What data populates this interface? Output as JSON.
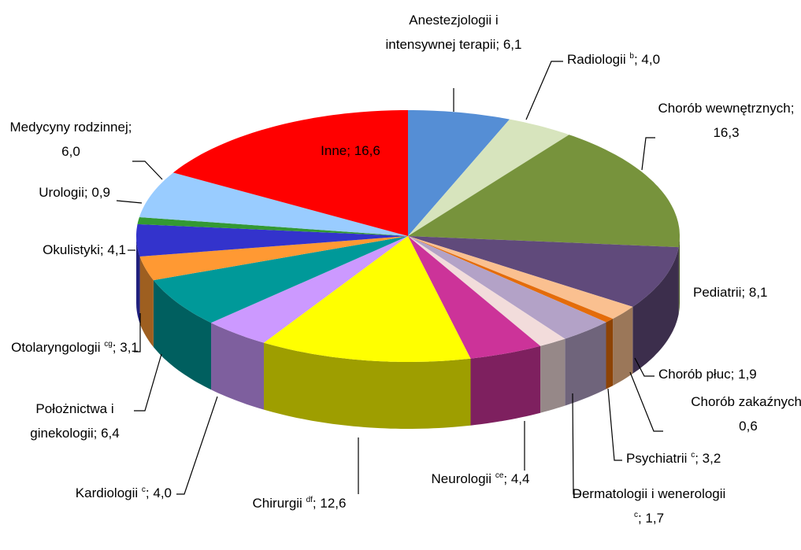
{
  "chart_data": {
    "type": "pie3d",
    "categories": [
      "Anestezjologii i intensywnej terapii",
      "Radiologii",
      "Chorób wewnętrznych",
      "Pediatrii",
      "Chorób płuc",
      "Chorób zakaźnych",
      "Psychiatrii",
      "Dermatologii i wenerologii",
      "Neurologii",
      "Chirurgii",
      "Kardiologii",
      "Położnictwa i ginekologii",
      "Otolaryngologii",
      "Okulistyki",
      "Urologii",
      "Medycyny rodzinnej",
      "Inne"
    ],
    "notes": [
      null,
      "b",
      null,
      null,
      null,
      null,
      "c",
      "c",
      "ce",
      "df",
      "c",
      null,
      "cg",
      null,
      null,
      null,
      null
    ],
    "separator": "; ",
    "values": [
      6.1,
      4.0,
      16.3,
      8.1,
      1.9,
      0.6,
      3.2,
      1.7,
      4.4,
      12.6,
      4.0,
      6.4,
      3.1,
      4.1,
      0.9,
      6.0,
      16.6
    ],
    "value_labels": [
      "6,1",
      "4,0",
      "16,3",
      "8,1",
      "1,9",
      "0,6",
      "3,2",
      "1,7",
      "4,4",
      "12,6",
      "4,0",
      "6,4",
      "3,1",
      "4,1",
      "0,9",
      "6,0",
      "16,6"
    ],
    "colors": [
      "#558ed5",
      "#d7e4bd",
      "#77933c",
      "#604a7b",
      "#fac090",
      "#e46c0a",
      "#b3a2c7",
      "#f2dcdb",
      "#cc3399",
      "#ffff00",
      "#cc99ff",
      "#009999",
      "#ff9933",
      "#3333cc",
      "#339933",
      "#99ccff",
      "#ff0000"
    ]
  }
}
